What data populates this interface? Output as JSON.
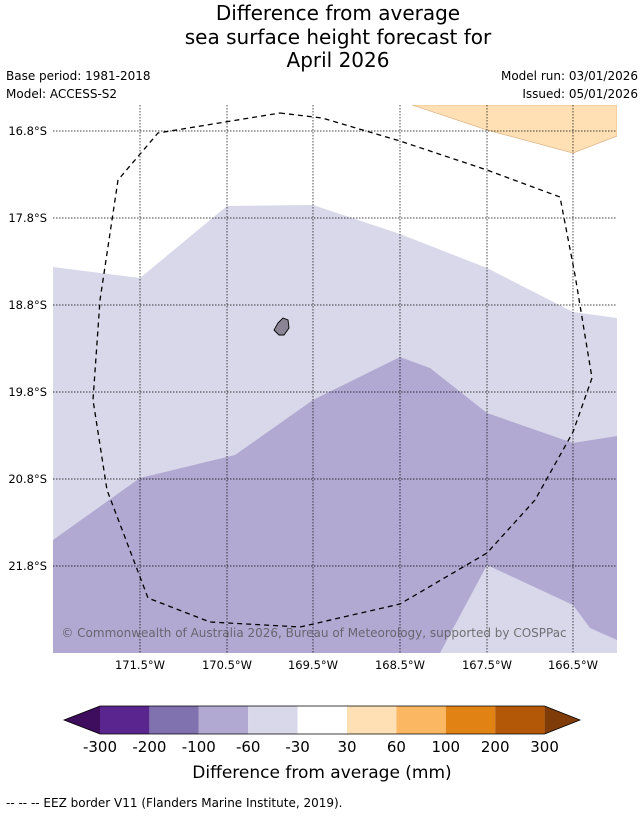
{
  "title": {
    "line1": "Difference from average",
    "line2": "sea surface height forecast for",
    "line3": "April 2026"
  },
  "meta": {
    "base_period": "Base period: 1981-2018",
    "model": "Model: ACCESS-S2",
    "model_run": "Model run: 03/01/2026",
    "issued": "Issued: 05/01/2026"
  },
  "map": {
    "lat_labels": [
      "16.8°S",
      "17.8°S",
      "18.8°S",
      "19.8°S",
      "20.8°S",
      "21.8°S"
    ],
    "lon_labels": [
      "171.5°W",
      "170.5°W",
      "169.5°W",
      "168.5°W",
      "167.5°W",
      "166.5°W"
    ],
    "copyright": "© Commonwealth of Australia 2026, Bureau of Meteorology, supported by COSPPac"
  },
  "legend": {
    "title": "Difference from average (mm)",
    "tick_labels": [
      "-300",
      "-200",
      "-100",
      "-60",
      "-30",
      "30",
      "60",
      "100",
      "200",
      "300"
    ],
    "colors": [
      "#3f0d5e",
      "#5b2590",
      "#8071af",
      "#b1a9d2",
      "#d8d8ea",
      "#ffffff",
      "#fee0b4",
      "#fcb762",
      "#e08214",
      "#b35806",
      "#7f3b08"
    ]
  },
  "footer": "--  --  -- EEZ border V11 (Flanders Marine Institute, 2019)."
}
